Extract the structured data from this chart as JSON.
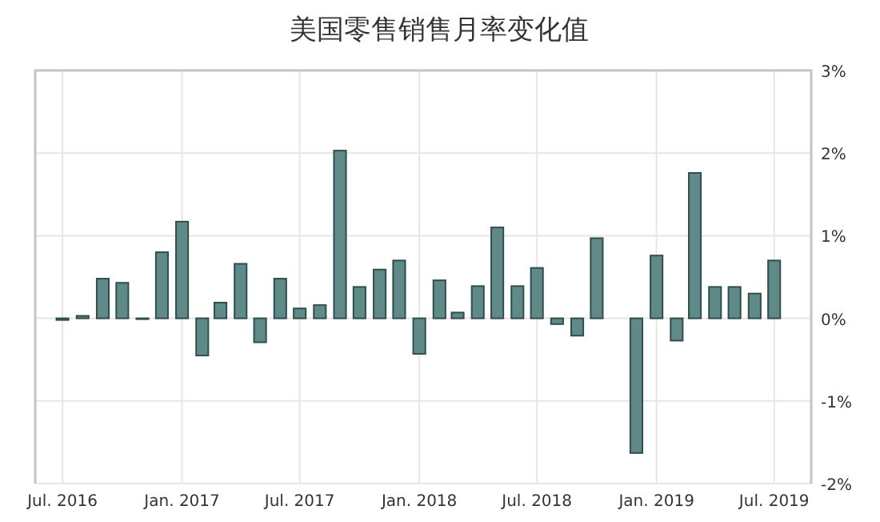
{
  "chart_data": {
    "type": "bar",
    "title": "美国零售销售月率变化值",
    "color": "#5f8a87",
    "grid": true,
    "x": [
      "2016-07",
      "2016-08",
      "2016-09",
      "2016-10",
      "2016-11",
      "2016-12",
      "2017-01",
      "2017-02",
      "2017-03",
      "2017-04",
      "2017-05",
      "2017-06",
      "2017-07",
      "2017-08",
      "2017-09",
      "2017-10",
      "2017-11",
      "2017-12",
      "2018-01",
      "2018-02",
      "2018-03",
      "2018-04",
      "2018-05",
      "2018-06",
      "2018-07",
      "2018-08",
      "2018-09",
      "2018-10",
      "2018-11",
      "2018-12",
      "2019-01",
      "2019-02",
      "2019-03",
      "2019-04",
      "2019-05",
      "2019-06",
      "2019-07"
    ],
    "values": [
      -0.02,
      0.03,
      0.48,
      0.43,
      -0.01,
      0.8,
      1.17,
      -0.45,
      0.19,
      0.66,
      -0.29,
      0.48,
      0.12,
      0.16,
      2.03,
      0.38,
      0.59,
      0.7,
      -0.43,
      0.46,
      0.07,
      0.39,
      1.1,
      0.39,
      0.61,
      -0.07,
      -0.21,
      0.97,
      null,
      -1.63,
      0.76,
      -0.27,
      1.76,
      0.38,
      0.38,
      0.3,
      0.7
    ],
    "xlim": [
      "2016-05-20",
      "2019-08-27"
    ],
    "xticks": [
      {
        "value": "2016-07",
        "label": "Jul. 2016"
      },
      {
        "value": "2017-01",
        "label": "Jan. 2017"
      },
      {
        "value": "2017-07",
        "label": "Jul. 2017"
      },
      {
        "value": "2018-01",
        "label": "Jan. 2018"
      },
      {
        "value": "2018-07",
        "label": "Jul. 2018"
      },
      {
        "value": "2019-01",
        "label": "Jan. 2019"
      },
      {
        "value": "2019-07",
        "label": "Jul. 2019"
      }
    ],
    "ylim": [
      -2,
      3
    ],
    "yticks": [
      {
        "value": -2,
        "label": "-2%"
      },
      {
        "value": -1,
        "label": "-1%"
      },
      {
        "value": 0,
        "label": "0%"
      },
      {
        "value": 1,
        "label": "1%"
      },
      {
        "value": 2,
        "label": "2%"
      },
      {
        "value": 3,
        "label": "3%"
      }
    ]
  }
}
